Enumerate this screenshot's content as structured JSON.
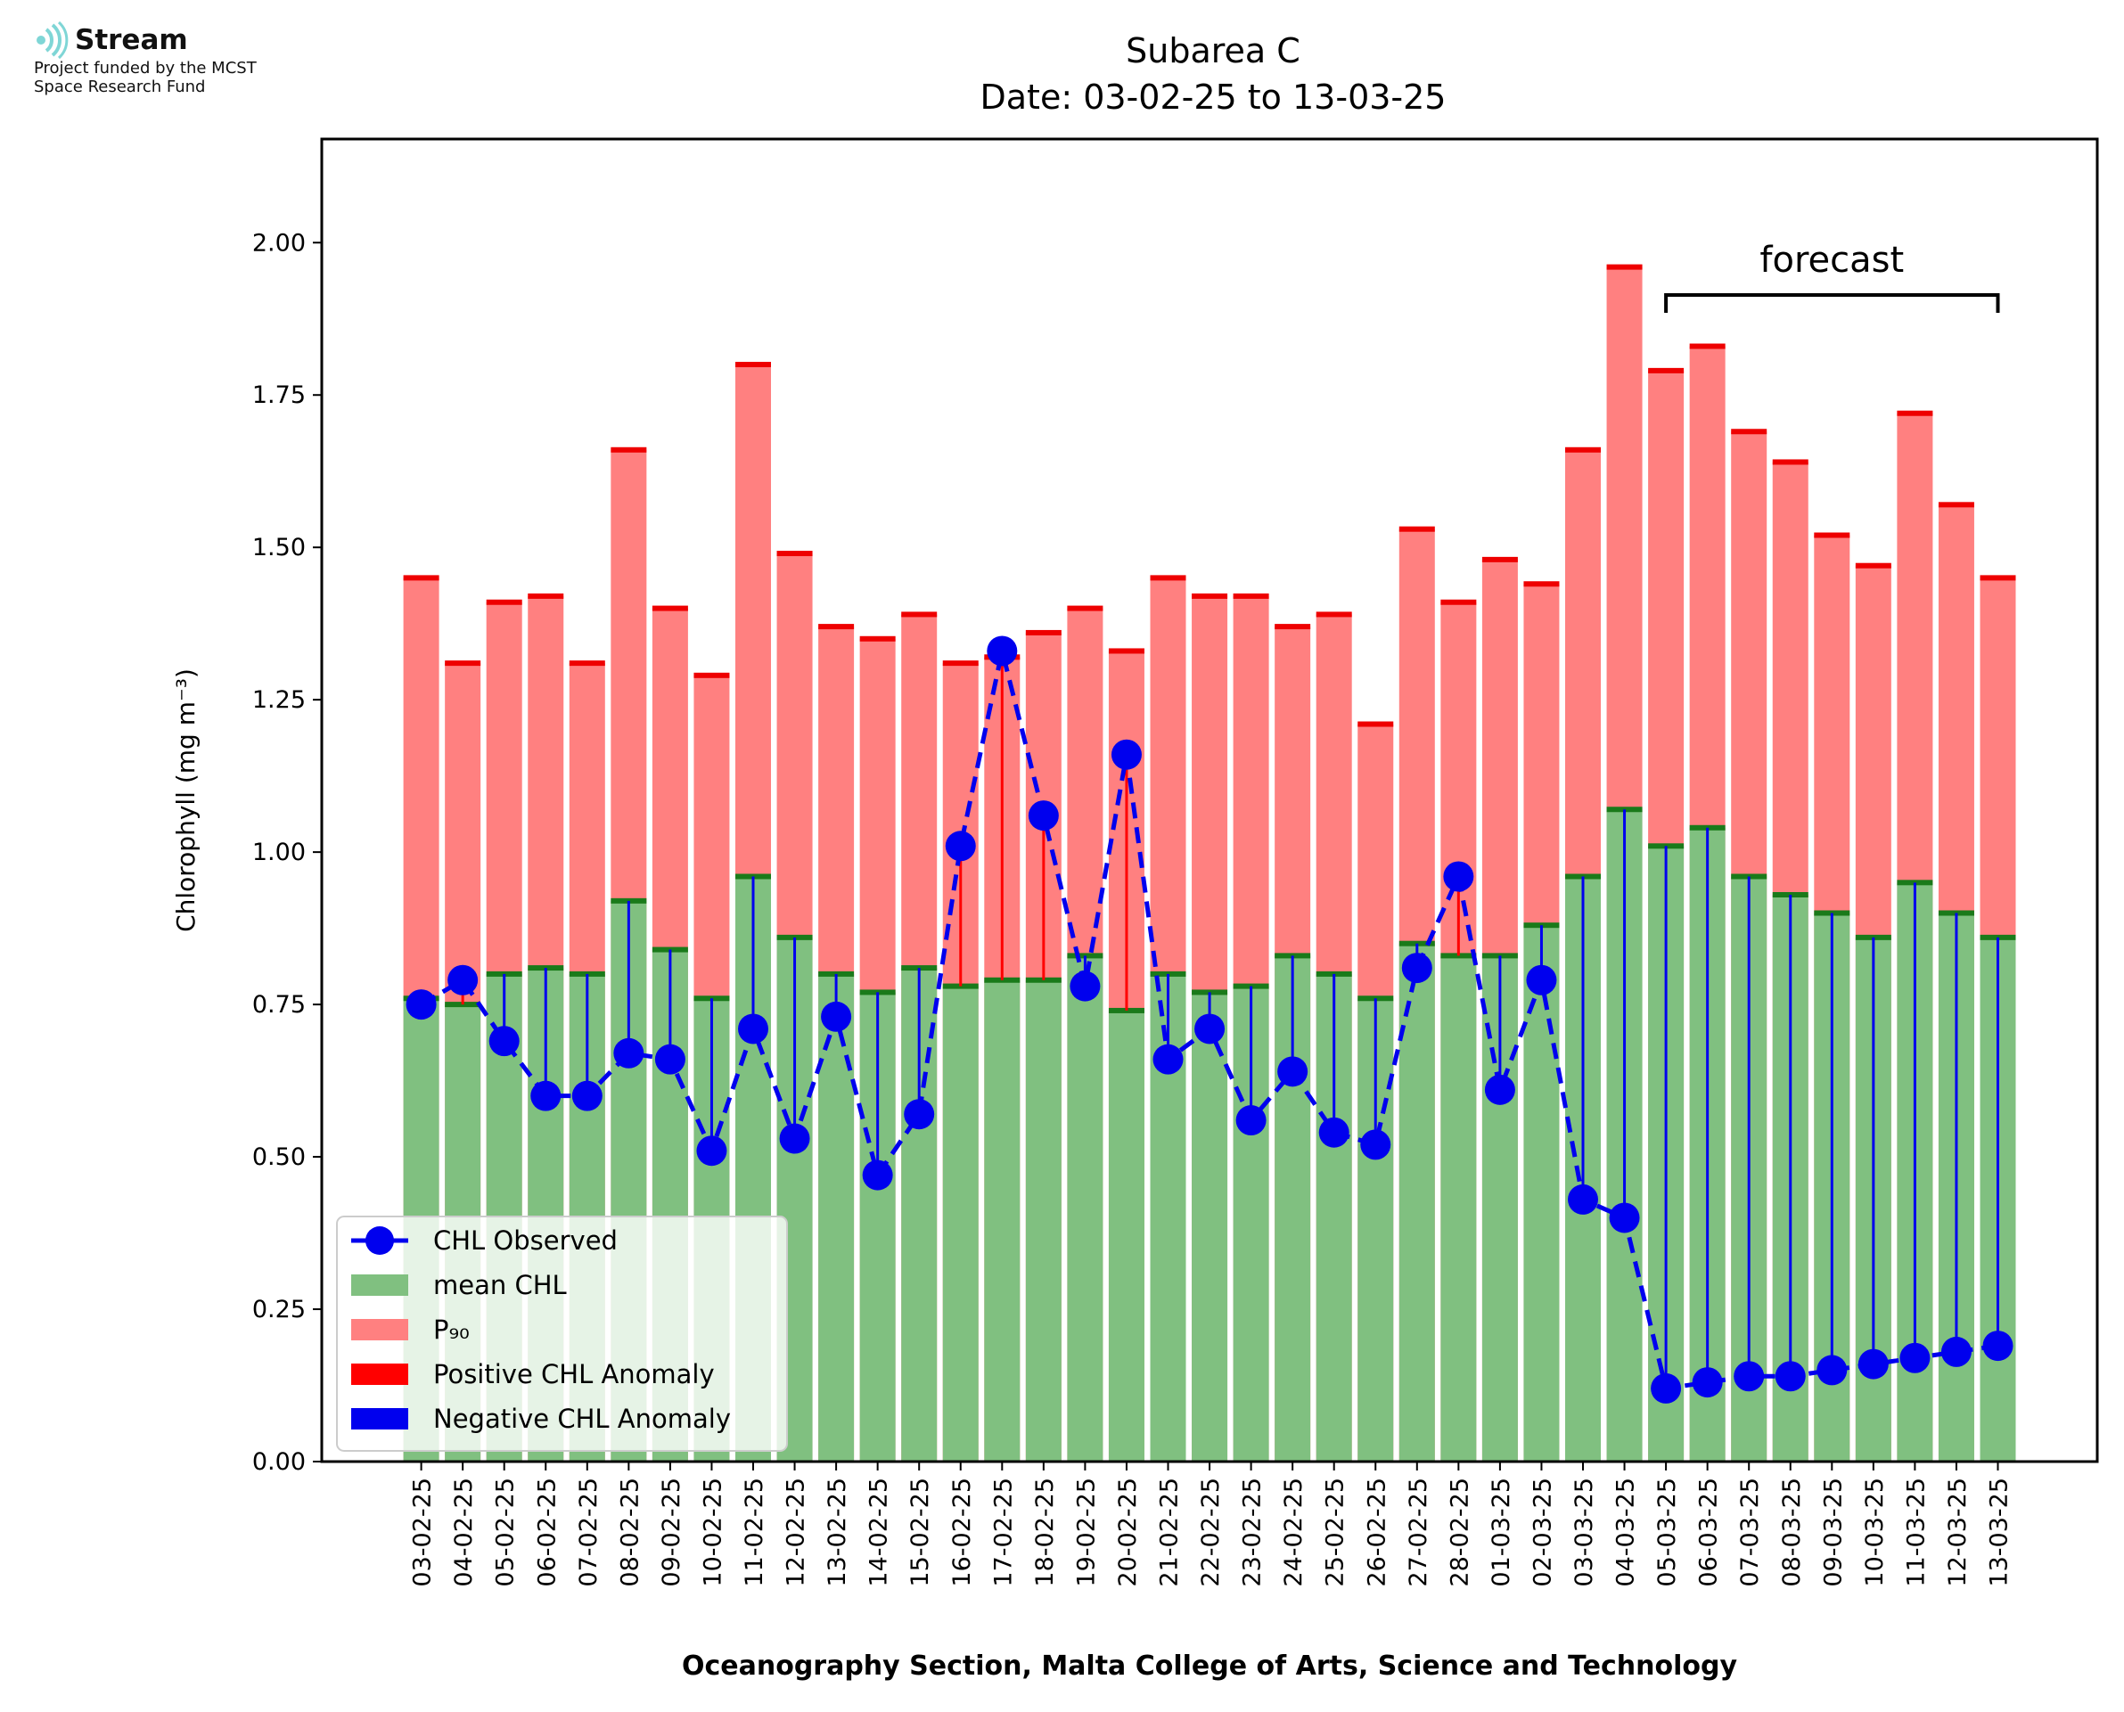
{
  "logo": {
    "name": "Stream",
    "line1": "Project funded by the MCST",
    "line2": "Space Research Fund",
    "icon": "stream-waves-icon",
    "color": "#7fd6d6"
  },
  "chart_data": {
    "type": "bar",
    "title": "Subarea C",
    "subtitle": "Date: 03-02-25 to 13-03-25",
    "xlabel": "Oceanography Section, Malta College of Arts, Science and Technology",
    "ylabel": "Chlorophyll (mg m⁻³)",
    "ylim": [
      0,
      2.17
    ],
    "yticks": [
      0.0,
      0.25,
      0.5,
      0.75,
      1.0,
      1.25,
      1.5,
      1.75,
      2.0
    ],
    "ytick_labels": [
      "0.00",
      "0.25",
      "0.50",
      "0.75",
      "1.00",
      "1.25",
      "1.50",
      "1.75",
      "2.00"
    ],
    "categories": [
      "03-02-25",
      "04-02-25",
      "05-02-25",
      "06-02-25",
      "07-02-25",
      "08-02-25",
      "09-02-25",
      "10-02-25",
      "11-02-25",
      "12-02-25",
      "13-02-25",
      "14-02-25",
      "15-02-25",
      "16-02-25",
      "17-02-25",
      "18-02-25",
      "19-02-25",
      "20-02-25",
      "21-02-25",
      "22-02-25",
      "23-02-25",
      "24-02-25",
      "25-02-25",
      "26-02-25",
      "27-02-25",
      "28-02-25",
      "01-03-25",
      "02-03-25",
      "03-03-25",
      "04-03-25",
      "05-03-25",
      "06-03-25",
      "07-03-25",
      "08-03-25",
      "09-03-25",
      "10-03-25",
      "11-03-25",
      "12-03-25",
      "13-03-25"
    ],
    "series": [
      {
        "name": "mean CHL",
        "kind": "bar",
        "color": "#80c080",
        "values": [
          0.76,
          0.75,
          0.8,
          0.81,
          0.8,
          0.92,
          0.84,
          0.76,
          0.96,
          0.86,
          0.8,
          0.77,
          0.81,
          0.78,
          0.79,
          0.79,
          0.83,
          0.74,
          0.8,
          0.77,
          0.78,
          0.83,
          0.8,
          0.76,
          0.85,
          0.83,
          0.83,
          0.88,
          0.96,
          1.07,
          1.01,
          1.04,
          0.96,
          0.93,
          0.9,
          0.86,
          0.95,
          0.9,
          0.86
        ]
      },
      {
        "name": "P₉₀",
        "kind": "bar",
        "color": "#ff8080",
        "values": [
          1.45,
          1.31,
          1.41,
          1.42,
          1.31,
          1.66,
          1.4,
          1.29,
          1.8,
          1.49,
          1.37,
          1.35,
          1.39,
          1.31,
          1.32,
          1.36,
          1.4,
          1.33,
          1.45,
          1.42,
          1.42,
          1.37,
          1.39,
          1.21,
          1.53,
          1.41,
          1.48,
          1.44,
          1.66,
          1.96,
          1.79,
          1.83,
          1.69,
          1.64,
          1.52,
          1.47,
          1.72,
          1.57,
          1.45
        ]
      },
      {
        "name": "CHL Observed",
        "kind": "line",
        "color": "#0000ee",
        "values": [
          0.75,
          0.79,
          0.69,
          0.6,
          0.6,
          0.67,
          0.66,
          0.51,
          0.71,
          0.53,
          0.73,
          0.47,
          0.57,
          1.01,
          1.33,
          1.06,
          0.78,
          1.16,
          0.66,
          0.71,
          0.56,
          0.64,
          0.54,
          0.52,
          0.81,
          0.96,
          0.61,
          0.79,
          0.43,
          0.4,
          0.12,
          0.13,
          0.14,
          0.14,
          0.15,
          0.16,
          0.17,
          0.18,
          0.19
        ]
      }
    ],
    "legend": {
      "placement": "lower-left",
      "entries": [
        {
          "label": "CHL Observed",
          "color": "#0000ee",
          "marker": "line-dot"
        },
        {
          "label": "mean CHL",
          "color": "#80c080",
          "marker": "patch"
        },
        {
          "label": "P₉₀",
          "color": "#ff8080",
          "marker": "patch"
        },
        {
          "label": "Positive CHL Anomaly",
          "color": "#ff0000",
          "marker": "patch"
        },
        {
          "label": "Negative CHL Anomaly",
          "color": "#0000ee",
          "marker": "patch"
        }
      ]
    },
    "annotation": {
      "text": "forecast",
      "from": "05-03-25",
      "to": "13-03-25"
    },
    "colors": {
      "positive_anomaly": "#ff0000",
      "negative_anomaly": "#0000ee",
      "mean_cap": "#1a7a1a",
      "p90_cap": "#ee0000"
    }
  }
}
